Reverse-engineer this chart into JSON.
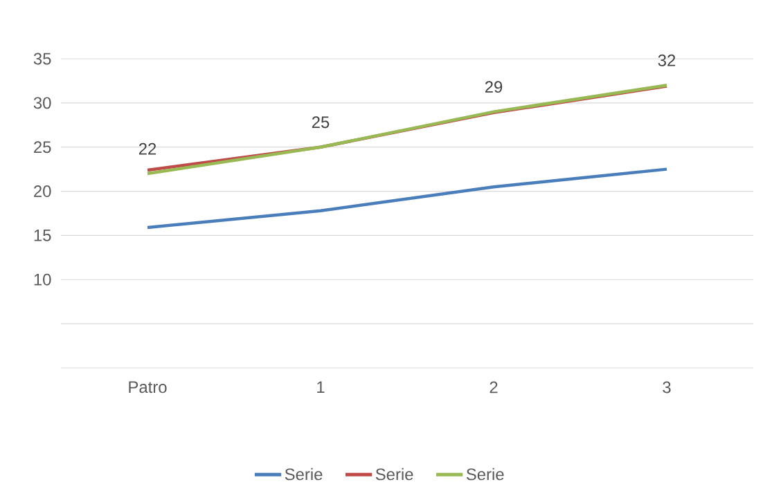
{
  "chart_data": {
    "type": "line",
    "categories": [
      "Patro",
      "1",
      "2",
      "3"
    ],
    "series": [
      {
        "name": "Serie",
        "color": "#4a7ebb",
        "values": [
          15.9,
          17.8,
          20.5,
          22.5
        ]
      },
      {
        "name": "Serie",
        "color": "#be4b48",
        "values": [
          22.4,
          25,
          28.9,
          31.9
        ]
      },
      {
        "name": "Serie",
        "color": "#98b954",
        "values": [
          22,
          25,
          29,
          32
        ],
        "value_labels": [
          "22",
          "25",
          "29",
          "32"
        ]
      }
    ],
    "ylim": [
      0,
      35
    ],
    "yticks": [
      {
        "value": 0,
        "label": null
      },
      {
        "value": 5,
        "label": null
      },
      10,
      15,
      20,
      25,
      30,
      35
    ],
    "grid": "y",
    "legend": "bottom",
    "marker": "none",
    "line_style": "solid"
  }
}
